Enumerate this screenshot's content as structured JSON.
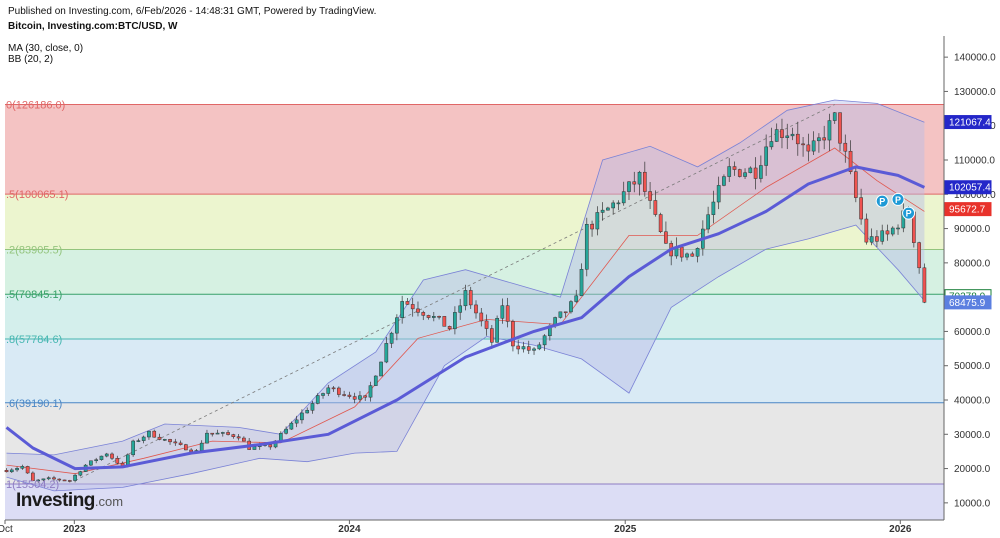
{
  "header": {
    "published": "Published on Investing.com, 6/Feb/2026 - 14:48:31 GMT, Powered by TradingView.",
    "symbol": "Bitcoin, Investing.com:BTC/USD, W",
    "indicator_ma": "MA (30, close, 0)",
    "indicator_bb": "BB (20, 2)"
  },
  "logo": {
    "main": "Investing",
    "suffix": ".com"
  },
  "colors": {
    "up": "#26a69a",
    "down": "#ef5350",
    "ma": "#5b5bd6",
    "bb_fill": "#b8bde6",
    "bb_line": "#7a82d6",
    "bb_basis": "#e0584f",
    "fib_red": "#f2b9b9",
    "fib_orange": "#f8e2b5",
    "fib_yellow": "#e9f3c7",
    "fib_green": "#cfeedd",
    "fib_teal": "#ccece9",
    "fib_blue": "#d2e6f3",
    "fib_gray": "#e3e3e3",
    "fib_purple": "#d6d7f3"
  },
  "chart_data": {
    "type": "candlestick",
    "timeframe": "W",
    "y_axis": {
      "range": [
        5000,
        145000
      ],
      "ticks": [
        "140000.0",
        "130000.0",
        "120000.0",
        "110000.0",
        "100000.0",
        "90000.0",
        "80000.0",
        "70000.0",
        "60000.0",
        "50000.0",
        "40000.0",
        "30000.0",
        "20000.0",
        "10000.0"
      ]
    },
    "x_axis": {
      "range": [
        "2022-10-01",
        "2026-02-28"
      ],
      "ticks": [
        {
          "label": "Oct",
          "date": "2022-10-01",
          "bold": false
        },
        {
          "label": "2023",
          "date": "2023-01-01",
          "bold": true
        },
        {
          "label": "2024",
          "date": "2024-01-01",
          "bold": true
        },
        {
          "label": "2025",
          "date": "2025-01-01",
          "bold": true
        },
        {
          "label": "2026",
          "date": "2026-01-01",
          "bold": true
        }
      ]
    },
    "fib_levels": [
      {
        "label": "0(126186.0)",
        "value": 126186.0,
        "line": "#e06666"
      },
      {
        "label": ".5(100065.1)",
        "value": 100065.1,
        "line": "#e06666"
      },
      {
        "label": ".2(83905.5)",
        "value": 83905.5,
        "line": "#93c47d"
      },
      {
        "label": ".5(70845.1)",
        "value": 70845.1,
        "line": "#38a169"
      },
      {
        "label": ".8(57784.6)",
        "value": 57784.6,
        "line": "#45b6b0"
      },
      {
        "label": ".6(39190.1)",
        "value": 39190.1,
        "line": "#4a86c5"
      },
      {
        "label": "1(15504.2)",
        "value": 15504.2,
        "line": "#8e7cc3"
      }
    ],
    "price_tags": [
      {
        "text": "121067.4",
        "value": 121067.4,
        "bg": "#2427c9",
        "fg": "#ffffff"
      },
      {
        "text": "102057.4",
        "value": 102057.4,
        "bg": "#2427c9",
        "fg": "#ffffff"
      },
      {
        "text": "95672.7",
        "value": 95672.7,
        "bg": "#e8322b",
        "fg": "#ffffff"
      },
      {
        "text": "70278.0",
        "value": 70278.0,
        "bg": "#ffffff",
        "fg": "#1a7f3a",
        "border": "#1a7f3a"
      },
      {
        "text": "68475.9",
        "value": 68475.9,
        "bg": "#5b7fe0",
        "fg": "#ffffff"
      }
    ],
    "markers": [
      {
        "label": "P",
        "date": "2025-12-08",
        "value": 98000
      },
      {
        "label": "P",
        "date": "2025-12-29",
        "value": 98500
      },
      {
        "label": "P",
        "date": "2026-01-12",
        "value": 94500
      }
    ],
    "close_path": [
      {
        "date": "2022-10-03",
        "close": 19500
      },
      {
        "date": "2022-10-24",
        "close": 20600
      },
      {
        "date": "2022-11-07",
        "close": 16300
      },
      {
        "date": "2022-11-28",
        "close": 17000
      },
      {
        "date": "2022-12-26",
        "close": 16550
      },
      {
        "date": "2023-01-16",
        "close": 21000
      },
      {
        "date": "2023-02-13",
        "close": 24500
      },
      {
        "date": "2023-03-06",
        "close": 20500
      },
      {
        "date": "2023-03-20",
        "close": 27500
      },
      {
        "date": "2023-04-10",
        "close": 30400
      },
      {
        "date": "2023-05-15",
        "close": 27000
      },
      {
        "date": "2023-06-12",
        "close": 25000
      },
      {
        "date": "2023-06-26",
        "close": 30500
      },
      {
        "date": "2023-08-07",
        "close": 29500
      },
      {
        "date": "2023-08-21",
        "close": 26000
      },
      {
        "date": "2023-09-18",
        "close": 26600
      },
      {
        "date": "2023-10-23",
        "close": 34500
      },
      {
        "date": "2023-12-04",
        "close": 43500
      },
      {
        "date": "2024-01-22",
        "close": 40000
      },
      {
        "date": "2024-02-12",
        "close": 52000
      },
      {
        "date": "2024-03-11",
        "close": 69000
      },
      {
        "date": "2024-04-15",
        "close": 65000
      },
      {
        "date": "2024-05-13",
        "close": 61000
      },
      {
        "date": "2024-06-03",
        "close": 71000
      },
      {
        "date": "2024-07-08",
        "close": 57000
      },
      {
        "date": "2024-07-22",
        "close": 68000
      },
      {
        "date": "2024-08-05",
        "close": 56500
      },
      {
        "date": "2024-09-02",
        "close": 54000
      },
      {
        "date": "2024-09-30",
        "close": 63000
      },
      {
        "date": "2024-10-28",
        "close": 69000
      },
      {
        "date": "2024-11-11",
        "close": 90000
      },
      {
        "date": "2024-12-16",
        "close": 97000
      },
      {
        "date": "2025-01-20",
        "close": 105000
      },
      {
        "date": "2025-02-24",
        "close": 84000
      },
      {
        "date": "2025-03-31",
        "close": 82000
      },
      {
        "date": "2025-04-21",
        "close": 94000
      },
      {
        "date": "2025-05-19",
        "close": 107000
      },
      {
        "date": "2025-06-23",
        "close": 107000
      },
      {
        "date": "2025-07-14",
        "close": 118000
      },
      {
        "date": "2025-08-11",
        "close": 118500
      },
      {
        "date": "2025-09-01",
        "close": 111000
      },
      {
        "date": "2025-10-06",
        "close": 122000
      },
      {
        "date": "2025-10-20",
        "close": 111000
      },
      {
        "date": "2025-11-17",
        "close": 86500
      },
      {
        "date": "2025-12-15",
        "close": 88000
      },
      {
        "date": "2026-01-12",
        "close": 95500
      },
      {
        "date": "2026-01-26",
        "close": 79000
      },
      {
        "date": "2026-02-02",
        "close": 68500
      }
    ],
    "ma30": [
      {
        "date": "2022-10-03",
        "value": 32000
      },
      {
        "date": "2022-11-07",
        "value": 26000
      },
      {
        "date": "2023-01-02",
        "value": 20000
      },
      {
        "date": "2023-03-06",
        "value": 20500
      },
      {
        "date": "2023-06-05",
        "value": 24500
      },
      {
        "date": "2023-09-04",
        "value": 27000
      },
      {
        "date": "2023-12-04",
        "value": 30000
      },
      {
        "date": "2024-03-04",
        "value": 40000
      },
      {
        "date": "2024-06-03",
        "value": 52500
      },
      {
        "date": "2024-09-02",
        "value": 60000
      },
      {
        "date": "2024-11-04",
        "value": 64000
      },
      {
        "date": "2025-01-06",
        "value": 76000
      },
      {
        "date": "2025-03-03",
        "value": 84000
      },
      {
        "date": "2025-05-05",
        "value": 88500
      },
      {
        "date": "2025-07-07",
        "value": 95000
      },
      {
        "date": "2025-09-01",
        "value": 103000
      },
      {
        "date": "2025-11-03",
        "value": 108000
      },
      {
        "date": "2025-12-29",
        "value": 105500
      },
      {
        "date": "2026-02-02",
        "value": 102000
      }
    ],
    "bb_upper": [
      {
        "date": "2022-10-03",
        "value": 24500
      },
      {
        "date": "2022-12-05",
        "value": 24000
      },
      {
        "date": "2023-03-06",
        "value": 28000
      },
      {
        "date": "2023-05-01",
        "value": 33000
      },
      {
        "date": "2023-08-07",
        "value": 32000
      },
      {
        "date": "2023-10-02",
        "value": 30000
      },
      {
        "date": "2023-12-04",
        "value": 45000
      },
      {
        "date": "2024-02-05",
        "value": 54000
      },
      {
        "date": "2024-04-08",
        "value": 75000
      },
      {
        "date": "2024-06-03",
        "value": 78000
      },
      {
        "date": "2024-08-05",
        "value": 74000
      },
      {
        "date": "2024-10-07",
        "value": 70000
      },
      {
        "date": "2024-12-02",
        "value": 110000
      },
      {
        "date": "2025-02-03",
        "value": 114000
      },
      {
        "date": "2025-04-07",
        "value": 108000
      },
      {
        "date": "2025-06-02",
        "value": 115000
      },
      {
        "date": "2025-08-04",
        "value": 124500
      },
      {
        "date": "2025-10-06",
        "value": 127500
      },
      {
        "date": "2025-12-01",
        "value": 126500
      },
      {
        "date": "2026-02-02",
        "value": 121000
      }
    ],
    "bb_lower": [
      {
        "date": "2022-10-03",
        "value": 17500
      },
      {
        "date": "2022-12-05",
        "value": 13500
      },
      {
        "date": "2023-03-06",
        "value": 14500
      },
      {
        "date": "2023-06-05",
        "value": 18500
      },
      {
        "date": "2023-09-04",
        "value": 23000
      },
      {
        "date": "2023-11-06",
        "value": 22000
      },
      {
        "date": "2024-01-08",
        "value": 24500
      },
      {
        "date": "2024-03-04",
        "value": 25000
      },
      {
        "date": "2024-05-06",
        "value": 50000
      },
      {
        "date": "2024-07-01",
        "value": 58500
      },
      {
        "date": "2024-09-02",
        "value": 56000
      },
      {
        "date": "2024-11-04",
        "value": 52000
      },
      {
        "date": "2025-01-06",
        "value": 42000
      },
      {
        "date": "2025-03-03",
        "value": 67000
      },
      {
        "date": "2025-05-05",
        "value": 76000
      },
      {
        "date": "2025-07-07",
        "value": 84000
      },
      {
        "date": "2025-09-01",
        "value": 87000
      },
      {
        "date": "2025-11-03",
        "value": 91000
      },
      {
        "date": "2025-12-29",
        "value": 78000
      },
      {
        "date": "2026-02-02",
        "value": 69000
      }
    ],
    "bb_basis": [
      {
        "date": "2022-10-03",
        "value": 21000
      },
      {
        "date": "2023-01-02",
        "value": 18500
      },
      {
        "date": "2023-04-03",
        "value": 23000
      },
      {
        "date": "2023-07-03",
        "value": 28000
      },
      {
        "date": "2023-10-02",
        "value": 27500
      },
      {
        "date": "2024-01-08",
        "value": 38000
      },
      {
        "date": "2024-04-01",
        "value": 58000
      },
      {
        "date": "2024-07-01",
        "value": 63500
      },
      {
        "date": "2024-10-07",
        "value": 62000
      },
      {
        "date": "2025-01-06",
        "value": 88000
      },
      {
        "date": "2025-04-07",
        "value": 88000
      },
      {
        "date": "2025-07-07",
        "value": 102000
      },
      {
        "date": "2025-10-06",
        "value": 113500
      },
      {
        "date": "2025-12-01",
        "value": 104000
      },
      {
        "date": "2026-02-02",
        "value": 95000
      }
    ],
    "trendline": [
      {
        "date": "2023-01-02",
        "value": 16500
      },
      {
        "date": "2025-10-06",
        "value": 126186
      }
    ]
  }
}
